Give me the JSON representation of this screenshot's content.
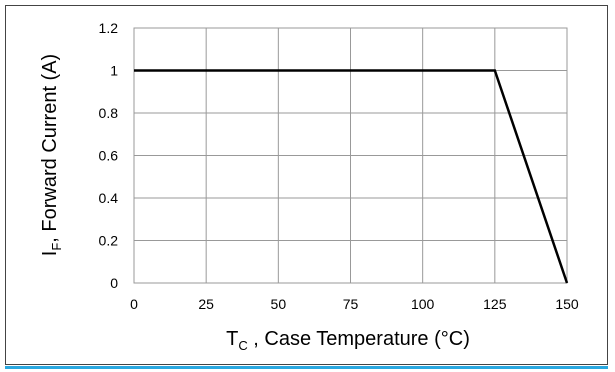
{
  "chart_data": {
    "type": "line",
    "xlabel_main": "T",
    "xlabel_sub": "C",
    "xlabel_rest": " , Case Temperature  (°C)",
    "ylabel_main": "I",
    "ylabel_sub": "F",
    "ylabel_rest": ", Forward Current (A)",
    "xlim": [
      0,
      150
    ],
    "ylim": [
      0,
      1.2
    ],
    "xticks": [
      0,
      25,
      50,
      75,
      100,
      125,
      150
    ],
    "yticks": [
      0,
      0.2,
      0.4,
      0.6,
      0.8,
      1,
      1.2
    ],
    "xtick_labels": [
      "0",
      "25",
      "50",
      "75",
      "100",
      "125",
      "150"
    ],
    "ytick_labels": [
      "0",
      "0.2",
      "0.4",
      "0.6",
      "0.8",
      "1",
      "1.2"
    ],
    "grid": true,
    "colors": {
      "line": "#000000",
      "grid": "#999999",
      "frame": "#444444",
      "accent": "#29a8e0"
    },
    "series": [
      {
        "x": [
          0,
          125,
          150
        ],
        "y": [
          1,
          1,
          0
        ]
      }
    ]
  }
}
